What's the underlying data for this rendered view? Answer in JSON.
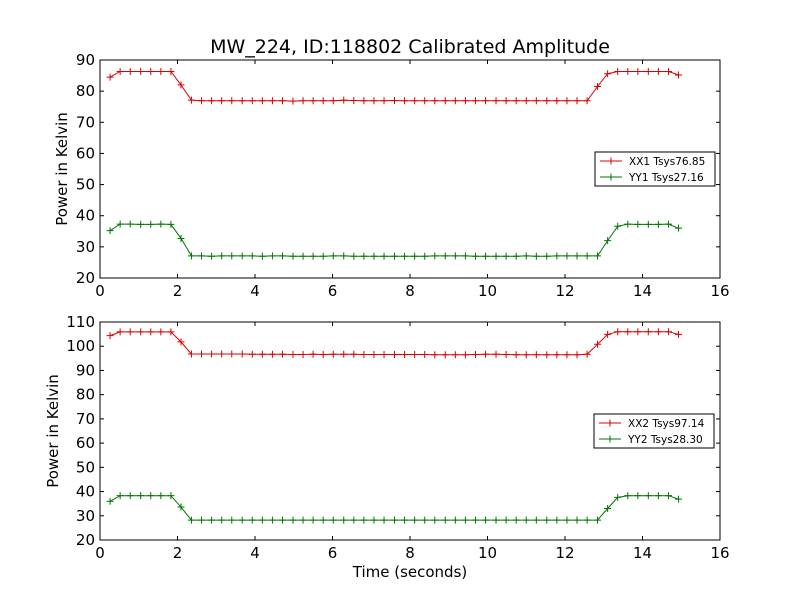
{
  "figure": {
    "title": "MW_224, ID:118802 Calibrated Amplitude",
    "background": "#ffffff"
  },
  "chart_data": [
    {
      "type": "line",
      "title": "MW_224, ID:118802 Calibrated Amplitude",
      "xlabel": "",
      "ylabel": "Power in Kelvin",
      "xlim": [
        0,
        16
      ],
      "ylim": [
        20,
        90
      ],
      "xticks": [
        0,
        2,
        4,
        6,
        8,
        10,
        12,
        14,
        16
      ],
      "yticks": [
        20,
        30,
        40,
        50,
        60,
        70,
        80,
        90
      ],
      "grid": false,
      "legend_position": "center-right",
      "marker": "plus",
      "series": [
        {
          "name": "XX1 Tsys76.85",
          "color": "#dd0000",
          "x": [
            0.26,
            0.52,
            0.78,
            1.05,
            1.31,
            1.57,
            1.83,
            2.09,
            2.36,
            2.62,
            2.88,
            3.14,
            3.4,
            3.67,
            3.93,
            4.19,
            4.45,
            4.71,
            4.98,
            5.24,
            5.5,
            5.76,
            6.02,
            6.29,
            6.55,
            6.81,
            7.07,
            7.33,
            7.6,
            7.86,
            8.12,
            8.38,
            8.64,
            8.91,
            9.17,
            9.43,
            9.69,
            9.95,
            10.22,
            10.48,
            10.74,
            11.0,
            11.26,
            11.53,
            11.79,
            12.05,
            12.31,
            12.57,
            12.84,
            13.1,
            13.36,
            13.62,
            13.88,
            14.15,
            14.41,
            14.67,
            14.93
          ],
          "values": [
            84.5,
            86.3,
            86.3,
            86.3,
            86.3,
            86.3,
            86.3,
            82.0,
            77.1,
            76.9,
            76.9,
            76.9,
            76.9,
            76.9,
            76.9,
            76.9,
            76.9,
            76.9,
            76.8,
            76.9,
            76.9,
            76.9,
            76.9,
            77.1,
            77.0,
            76.9,
            76.9,
            76.9,
            77.0,
            76.9,
            76.9,
            76.9,
            76.9,
            76.9,
            76.9,
            76.9,
            76.9,
            76.9,
            76.9,
            76.9,
            76.9,
            76.9,
            76.9,
            76.9,
            76.9,
            76.9,
            76.9,
            76.9,
            81.5,
            85.6,
            86.3,
            86.3,
            86.3,
            86.3,
            86.3,
            86.3,
            85.2
          ]
        },
        {
          "name": "YY1 Tsys27.16",
          "color": "#007700",
          "x": [
            0.26,
            0.52,
            0.78,
            1.05,
            1.31,
            1.57,
            1.83,
            2.09,
            2.36,
            2.62,
            2.88,
            3.14,
            3.4,
            3.67,
            3.93,
            4.19,
            4.45,
            4.71,
            4.98,
            5.24,
            5.5,
            5.76,
            6.02,
            6.29,
            6.55,
            6.81,
            7.07,
            7.33,
            7.6,
            7.86,
            8.12,
            8.38,
            8.64,
            8.91,
            9.17,
            9.43,
            9.69,
            9.95,
            10.22,
            10.48,
            10.74,
            11.0,
            11.26,
            11.53,
            11.79,
            12.05,
            12.31,
            12.57,
            12.84,
            13.1,
            13.36,
            13.62,
            13.88,
            14.15,
            14.41,
            14.67,
            14.93
          ],
          "values": [
            35.2,
            37.3,
            37.3,
            37.2,
            37.2,
            37.3,
            37.2,
            32.7,
            27.1,
            27.1,
            27.0,
            27.1,
            27.1,
            27.1,
            27.1,
            27.0,
            27.1,
            27.1,
            27.0,
            27.0,
            27.0,
            27.0,
            27.1,
            27.1,
            27.0,
            27.0,
            27.0,
            27.0,
            27.0,
            27.0,
            27.0,
            27.0,
            27.1,
            27.1,
            27.1,
            27.1,
            27.0,
            27.0,
            27.0,
            27.0,
            27.0,
            27.1,
            27.0,
            27.0,
            27.1,
            27.1,
            27.1,
            27.1,
            27.1,
            32.0,
            36.6,
            37.3,
            37.2,
            37.2,
            37.2,
            37.3,
            36.0
          ]
        }
      ]
    },
    {
      "type": "line",
      "title": "",
      "xlabel": "Time (seconds)",
      "ylabel": "Power in Kelvin",
      "xlim": [
        0,
        16
      ],
      "ylim": [
        20,
        110
      ],
      "xticks": [
        0,
        2,
        4,
        6,
        8,
        10,
        12,
        14,
        16
      ],
      "yticks": [
        20,
        30,
        40,
        50,
        60,
        70,
        80,
        90,
        100,
        110
      ],
      "grid": false,
      "legend_position": "center-right",
      "marker": "plus",
      "series": [
        {
          "name": "XX2 Tsys97.14",
          "color": "#dd0000",
          "x": [
            0.26,
            0.52,
            0.78,
            1.05,
            1.31,
            1.57,
            1.83,
            2.09,
            2.36,
            2.62,
            2.88,
            3.14,
            3.4,
            3.67,
            3.93,
            4.19,
            4.45,
            4.71,
            4.98,
            5.24,
            5.5,
            5.76,
            6.02,
            6.29,
            6.55,
            6.81,
            7.07,
            7.33,
            7.6,
            7.86,
            8.12,
            8.38,
            8.64,
            8.91,
            9.17,
            9.43,
            9.69,
            9.95,
            10.22,
            10.48,
            10.74,
            11.0,
            11.26,
            11.53,
            11.79,
            12.05,
            12.31,
            12.57,
            12.84,
            13.1,
            13.36,
            13.62,
            13.88,
            14.15,
            14.41,
            14.67,
            14.93
          ],
          "values": [
            104.4,
            105.9,
            105.9,
            105.9,
            105.9,
            105.9,
            105.9,
            101.8,
            96.8,
            96.8,
            96.8,
            96.8,
            96.8,
            96.8,
            96.7,
            96.7,
            96.7,
            96.7,
            96.6,
            96.6,
            96.7,
            96.6,
            96.7,
            96.7,
            96.7,
            96.6,
            96.6,
            96.6,
            96.6,
            96.6,
            96.6,
            96.6,
            96.5,
            96.5,
            96.5,
            96.5,
            96.6,
            96.7,
            96.7,
            96.6,
            96.5,
            96.5,
            96.5,
            96.5,
            96.5,
            96.5,
            96.5,
            96.7,
            100.8,
            104.9,
            106.0,
            106.0,
            106.0,
            106.0,
            106.0,
            106.0,
            104.9
          ]
        },
        {
          "name": "YY2 Tsys28.30",
          "color": "#007700",
          "x": [
            0.26,
            0.52,
            0.78,
            1.05,
            1.31,
            1.57,
            1.83,
            2.09,
            2.36,
            2.62,
            2.88,
            3.14,
            3.4,
            3.67,
            3.93,
            4.19,
            4.45,
            4.71,
            4.98,
            5.24,
            5.5,
            5.76,
            6.02,
            6.29,
            6.55,
            6.81,
            7.07,
            7.33,
            7.6,
            7.86,
            8.12,
            8.38,
            8.64,
            8.91,
            9.17,
            9.43,
            9.69,
            9.95,
            10.22,
            10.48,
            10.74,
            11.0,
            11.26,
            11.53,
            11.79,
            12.05,
            12.31,
            12.57,
            12.84,
            13.1,
            13.36,
            13.62,
            13.88,
            14.15,
            14.41,
            14.67,
            14.93
          ],
          "values": [
            36.0,
            38.3,
            38.3,
            38.3,
            38.3,
            38.3,
            38.3,
            33.6,
            28.2,
            28.2,
            28.2,
            28.2,
            28.2,
            28.2,
            28.2,
            28.2,
            28.2,
            28.2,
            28.2,
            28.2,
            28.2,
            28.2,
            28.2,
            28.2,
            28.2,
            28.2,
            28.2,
            28.2,
            28.2,
            28.2,
            28.2,
            28.2,
            28.2,
            28.2,
            28.2,
            28.2,
            28.2,
            28.2,
            28.2,
            28.2,
            28.2,
            28.2,
            28.2,
            28.2,
            28.2,
            28.2,
            28.2,
            28.2,
            28.2,
            33.0,
            37.6,
            38.3,
            38.3,
            38.3,
            38.3,
            38.3,
            36.9
          ]
        }
      ]
    }
  ]
}
